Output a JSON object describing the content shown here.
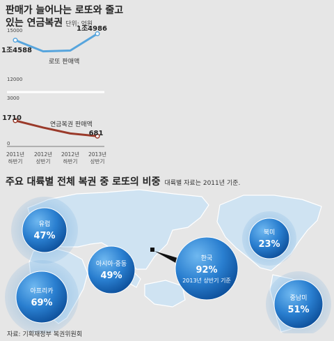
{
  "header": {
    "title_line1": "판매가 늘어나는 로또와 줄고",
    "title_line2": "있는 연금복권",
    "unit": "단위: 억원"
  },
  "chart_data": [
    {
      "type": "line",
      "title": "",
      "x": [
        "2011년 하반기",
        "2012년 상반기",
        "2012년 하반기",
        "2013년 상반기"
      ],
      "series": [
        {
          "name": "로또 판매액",
          "values": [
            14588,
            13900,
            13950,
            14986
          ],
          "value_labels": [
            "1조4588",
            "",
            "",
            "1조4986"
          ],
          "color": "#57a5dd"
        }
      ],
      "y_ticks": [
        "15000",
        "12000"
      ],
      "ylim": [
        12000,
        15000
      ]
    },
    {
      "type": "line",
      "title": "",
      "x": [
        "2011년 하반기",
        "2012년 상반기",
        "2012년 하반기",
        "2013년 상반기"
      ],
      "series": [
        {
          "name": "연금복권 판매액",
          "values": [
            1710,
            1250,
            860,
            681
          ],
          "value_labels": [
            "1710",
            "",
            "",
            "681"
          ],
          "color": "#9a3a2a"
        }
      ],
      "y_ticks": [
        "3000",
        "0"
      ],
      "ylim": [
        0,
        3000
      ]
    },
    {
      "type": "bubble",
      "title": "주요 대륙별 전체 복권 중 로또의 비중",
      "note": "대륙별 자료는 2011년 기준.",
      "categories": [
        "유럽",
        "아프리카",
        "아시아·중동",
        "한국",
        "북미",
        "중남미"
      ],
      "values": [
        47,
        69,
        49,
        92,
        23,
        51
      ],
      "value_labels": [
        "47%",
        "69%",
        "49%",
        "92%",
        "23%",
        "51%"
      ],
      "sublabels": [
        "",
        "",
        "",
        "2013년 상반기 기준",
        "",
        ""
      ]
    }
  ],
  "x_tick_lines": [
    [
      "2011년",
      "하반기"
    ],
    [
      "2012년",
      "상반기"
    ],
    [
      "2012년",
      "하반기"
    ],
    [
      "2013년",
      "상반기"
    ]
  ],
  "source": "자료: 기획재정부 복권위원회",
  "colors": {
    "lotto": "#57a5dd",
    "pension": "#9a3a2a",
    "bubble": "#2a7fd0",
    "map": "#cfe3f2",
    "background": "#e6e6e6"
  }
}
